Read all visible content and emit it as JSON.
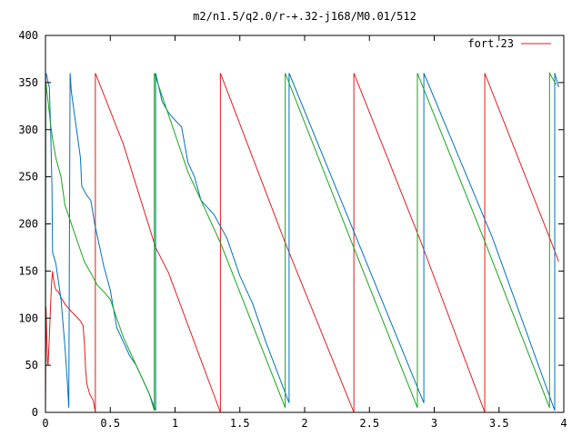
{
  "chart_data": {
    "type": "line",
    "title": "m2/n1.5/q2.0/r-+.32-j168/M0.01/512",
    "xlabel": "",
    "ylabel": "",
    "xlim": [
      0,
      4
    ],
    "ylim": [
      0,
      400
    ],
    "x_ticks": [
      0,
      0.5,
      1,
      1.5,
      2,
      2.5,
      3,
      3.5,
      4
    ],
    "x_tick_labels": [
      "0",
      "0.5",
      "1",
      "1.5",
      "2",
      "2.5",
      "3",
      "3.5",
      "4"
    ],
    "y_ticks": [
      0,
      50,
      100,
      150,
      200,
      250,
      300,
      350,
      400
    ],
    "y_tick_labels": [
      "0",
      "50",
      "100",
      "150",
      "200",
      "250",
      "300",
      "350",
      "400"
    ],
    "grid": false,
    "legend_position": "top-right",
    "series": [
      {
        "name": "fort.23",
        "color": "#e41a1c",
        "points": [
          [
            0.0,
            0
          ],
          [
            0.004,
            112
          ],
          [
            0.008,
            92
          ],
          [
            0.012,
            70
          ],
          [
            0.016,
            52
          ],
          [
            0.02,
            50
          ],
          [
            0.03,
            80
          ],
          [
            0.04,
            115
          ],
          [
            0.048,
            140
          ],
          [
            0.055,
            150
          ],
          [
            0.06,
            143
          ],
          [
            0.07,
            135
          ],
          [
            0.08,
            130
          ],
          [
            0.1,
            128
          ],
          [
            0.12,
            122
          ],
          [
            0.15,
            115
          ],
          [
            0.2,
            107
          ],
          [
            0.25,
            100
          ],
          [
            0.27,
            97
          ],
          [
            0.29,
            92
          ],
          [
            0.3,
            75
          ],
          [
            0.305,
            60
          ],
          [
            0.31,
            45
          ],
          [
            0.32,
            30
          ],
          [
            0.34,
            20
          ],
          [
            0.37,
            12
          ],
          [
            0.385,
            0
          ],
          [
            0.385,
            360
          ],
          [
            0.6,
            285
          ],
          [
            0.85,
            175
          ],
          [
            0.95,
            148
          ],
          [
            1.35,
            0
          ],
          [
            1.35,
            360
          ],
          [
            1.85,
            180
          ],
          [
            2.38,
            0
          ],
          [
            2.38,
            360
          ],
          [
            2.9,
            180
          ],
          [
            3.39,
            0
          ],
          [
            3.39,
            360
          ],
          [
            3.9,
            182
          ],
          [
            3.96,
            160
          ]
        ]
      },
      {
        "name": "",
        "color": "#0072bd",
        "points": [
          [
            0.0,
            0
          ],
          [
            0.002,
            360
          ],
          [
            0.01,
            358
          ],
          [
            0.02,
            350
          ],
          [
            0.03,
            345
          ],
          [
            0.04,
            300
          ],
          [
            0.05,
            240
          ],
          [
            0.055,
            170
          ],
          [
            0.08,
            158
          ],
          [
            0.12,
            120
          ],
          [
            0.15,
            70
          ],
          [
            0.17,
            30
          ],
          [
            0.18,
            5
          ],
          [
            0.19,
            360
          ],
          [
            0.2,
            340
          ],
          [
            0.23,
            310
          ],
          [
            0.25,
            290
          ],
          [
            0.27,
            270
          ],
          [
            0.28,
            240
          ],
          [
            0.3,
            235
          ],
          [
            0.32,
            230
          ],
          [
            0.35,
            225
          ],
          [
            0.38,
            200
          ],
          [
            0.45,
            155
          ],
          [
            0.5,
            130
          ],
          [
            0.55,
            90
          ],
          [
            0.6,
            75
          ],
          [
            0.65,
            60
          ],
          [
            0.7,
            50
          ],
          [
            0.75,
            35
          ],
          [
            0.8,
            20
          ],
          [
            0.85,
            2
          ],
          [
            0.85,
            360
          ],
          [
            0.9,
            330
          ],
          [
            0.95,
            318
          ],
          [
            1.0,
            310
          ],
          [
            1.05,
            303
          ],
          [
            1.1,
            265
          ],
          [
            1.15,
            250
          ],
          [
            1.2,
            225
          ],
          [
            1.3,
            210
          ],
          [
            1.4,
            185
          ],
          [
            1.5,
            145
          ],
          [
            1.6,
            115
          ],
          [
            1.7,
            75
          ],
          [
            1.88,
            10
          ],
          [
            1.88,
            360
          ],
          [
            2.4,
            185
          ],
          [
            2.92,
            10
          ],
          [
            2.92,
            360
          ],
          [
            3.45,
            185
          ],
          [
            3.93,
            2
          ],
          [
            3.93,
            360
          ],
          [
            3.96,
            345
          ]
        ]
      },
      {
        "name": "",
        "color": "#1aa41a",
        "points": [
          [
            0.0,
            0
          ],
          [
            0.002,
            352
          ],
          [
            0.02,
            330
          ],
          [
            0.04,
            305
          ],
          [
            0.055,
            290
          ],
          [
            0.08,
            270
          ],
          [
            0.12,
            250
          ],
          [
            0.15,
            220
          ],
          [
            0.2,
            200
          ],
          [
            0.25,
            180
          ],
          [
            0.3,
            160
          ],
          [
            0.35,
            148
          ],
          [
            0.4,
            135
          ],
          [
            0.45,
            128
          ],
          [
            0.5,
            120
          ],
          [
            0.55,
            100
          ],
          [
            0.6,
            80
          ],
          [
            0.7,
            50
          ],
          [
            0.8,
            20
          ],
          [
            0.84,
            2
          ],
          [
            0.84,
            360
          ],
          [
            1.1,
            255
          ],
          [
            1.35,
            180
          ],
          [
            1.85,
            5
          ],
          [
            1.85,
            360
          ],
          [
            2.35,
            185
          ],
          [
            2.87,
            5
          ],
          [
            2.87,
            360
          ],
          [
            3.38,
            185
          ],
          [
            3.89,
            5
          ],
          [
            3.89,
            360
          ],
          [
            3.94,
            348
          ]
        ]
      }
    ]
  }
}
